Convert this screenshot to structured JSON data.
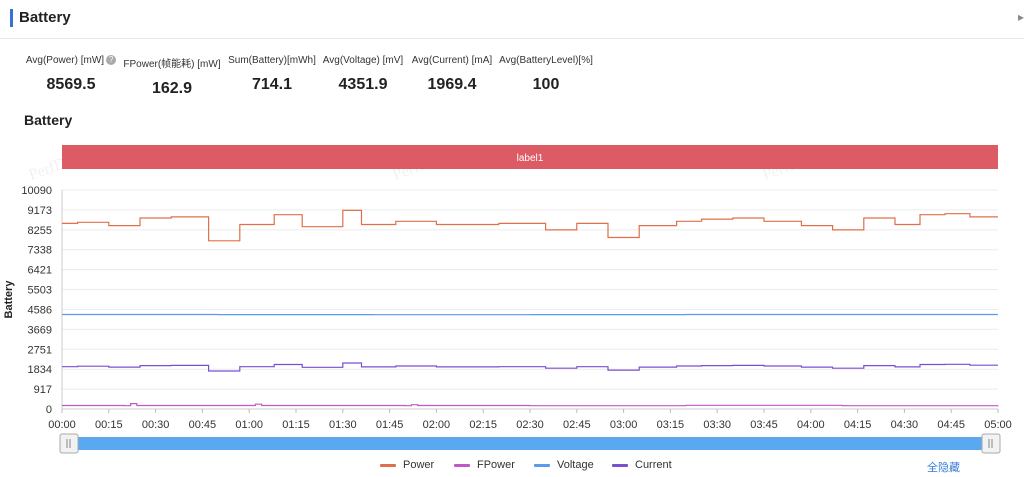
{
  "header": {
    "title": "Battery"
  },
  "stats": [
    {
      "label": "Avg(Power) [mW]",
      "value": "8569.5",
      "help_icon": "question-circle-icon"
    },
    {
      "label": "FPower(帧能耗) [mW]",
      "value": "162.9"
    },
    {
      "label": "Sum(Battery)[mWh]",
      "value": "714.1"
    },
    {
      "label": "Avg(Voltage) [mV]",
      "value": "4351.9"
    },
    {
      "label": "Avg(Current) [mA]",
      "value": "1969.4"
    },
    {
      "label": "Avg(BatteryLevel)[%]",
      "value": "100"
    }
  ],
  "chart_title": "Battery",
  "watermark": "PerfDog",
  "hide_all_label": "全隐藏",
  "chart_data": {
    "type": "line",
    "title": "Battery",
    "ylabel": "Battery",
    "xlabel": "",
    "band_label": "label1",
    "band_color": "#dc5b64",
    "ylim": [
      0,
      10090
    ],
    "y_ticks": [
      "0",
      "917",
      "1834",
      "2751",
      "3669",
      "4586",
      "5503",
      "6421",
      "7338",
      "8255",
      "9173",
      "10090"
    ],
    "y_tick_values": [
      0,
      917,
      1834,
      2751,
      3669,
      4586,
      5503,
      6421,
      7338,
      8255,
      9173,
      10090
    ],
    "x_ticks": [
      "00:00",
      "00:15",
      "00:30",
      "00:45",
      "01:00",
      "01:15",
      "01:30",
      "01:45",
      "02:00",
      "02:15",
      "02:30",
      "02:45",
      "03:00",
      "03:15",
      "03:30",
      "03:45",
      "04:00",
      "04:15",
      "04:30",
      "04:45",
      "05:00"
    ],
    "x_range": [
      0,
      300
    ],
    "step": true,
    "grid": true,
    "legend_position": "bottom",
    "series": [
      {
        "name": "Power",
        "color": "#e0704a",
        "x": [
          0,
          5,
          15,
          25,
          35,
          47,
          57,
          68,
          77,
          90,
          96,
          107,
          120,
          130,
          140,
          155,
          165,
          175,
          185,
          197,
          205,
          215,
          225,
          237,
          247,
          257,
          267,
          275,
          283,
          291,
          300
        ],
        "values": [
          8550,
          8600,
          8450,
          8800,
          8850,
          7750,
          8500,
          8950,
          8400,
          9150,
          8500,
          8650,
          8500,
          8500,
          8550,
          8250,
          8550,
          7900,
          8450,
          8650,
          8750,
          8800,
          8650,
          8450,
          8250,
          8800,
          8500,
          8950,
          9000,
          8850,
          8850
        ]
      },
      {
        "name": "FPower",
        "color": "#c058c8",
        "x": [
          0,
          20,
          22,
          24,
          60,
          62,
          64,
          110,
          112,
          114,
          150,
          200,
          250,
          300
        ],
        "values": [
          160,
          150,
          250,
          160,
          160,
          220,
          160,
          150,
          200,
          160,
          150,
          170,
          150,
          160
        ]
      },
      {
        "name": "Voltage",
        "color": "#5b9bea",
        "x": [
          0,
          50,
          100,
          150,
          200,
          250,
          300
        ],
        "values": [
          4352,
          4348,
          4345,
          4350,
          4353,
          4355,
          4352
        ]
      },
      {
        "name": "Current",
        "color": "#7b4fd0",
        "x": [
          0,
          5,
          15,
          25,
          35,
          47,
          57,
          68,
          77,
          90,
          96,
          107,
          120,
          130,
          140,
          155,
          165,
          175,
          185,
          197,
          205,
          215,
          225,
          237,
          247,
          257,
          267,
          275,
          283,
          291,
          300
        ],
        "values": [
          1950,
          1970,
          1930,
          2000,
          2010,
          1750,
          1950,
          2050,
          1920,
          2120,
          1940,
          1980,
          1940,
          1940,
          1950,
          1880,
          1950,
          1790,
          1930,
          1980,
          2000,
          2010,
          1980,
          1930,
          1880,
          2000,
          1940,
          2050,
          2060,
          2020,
          2020
        ]
      }
    ]
  }
}
